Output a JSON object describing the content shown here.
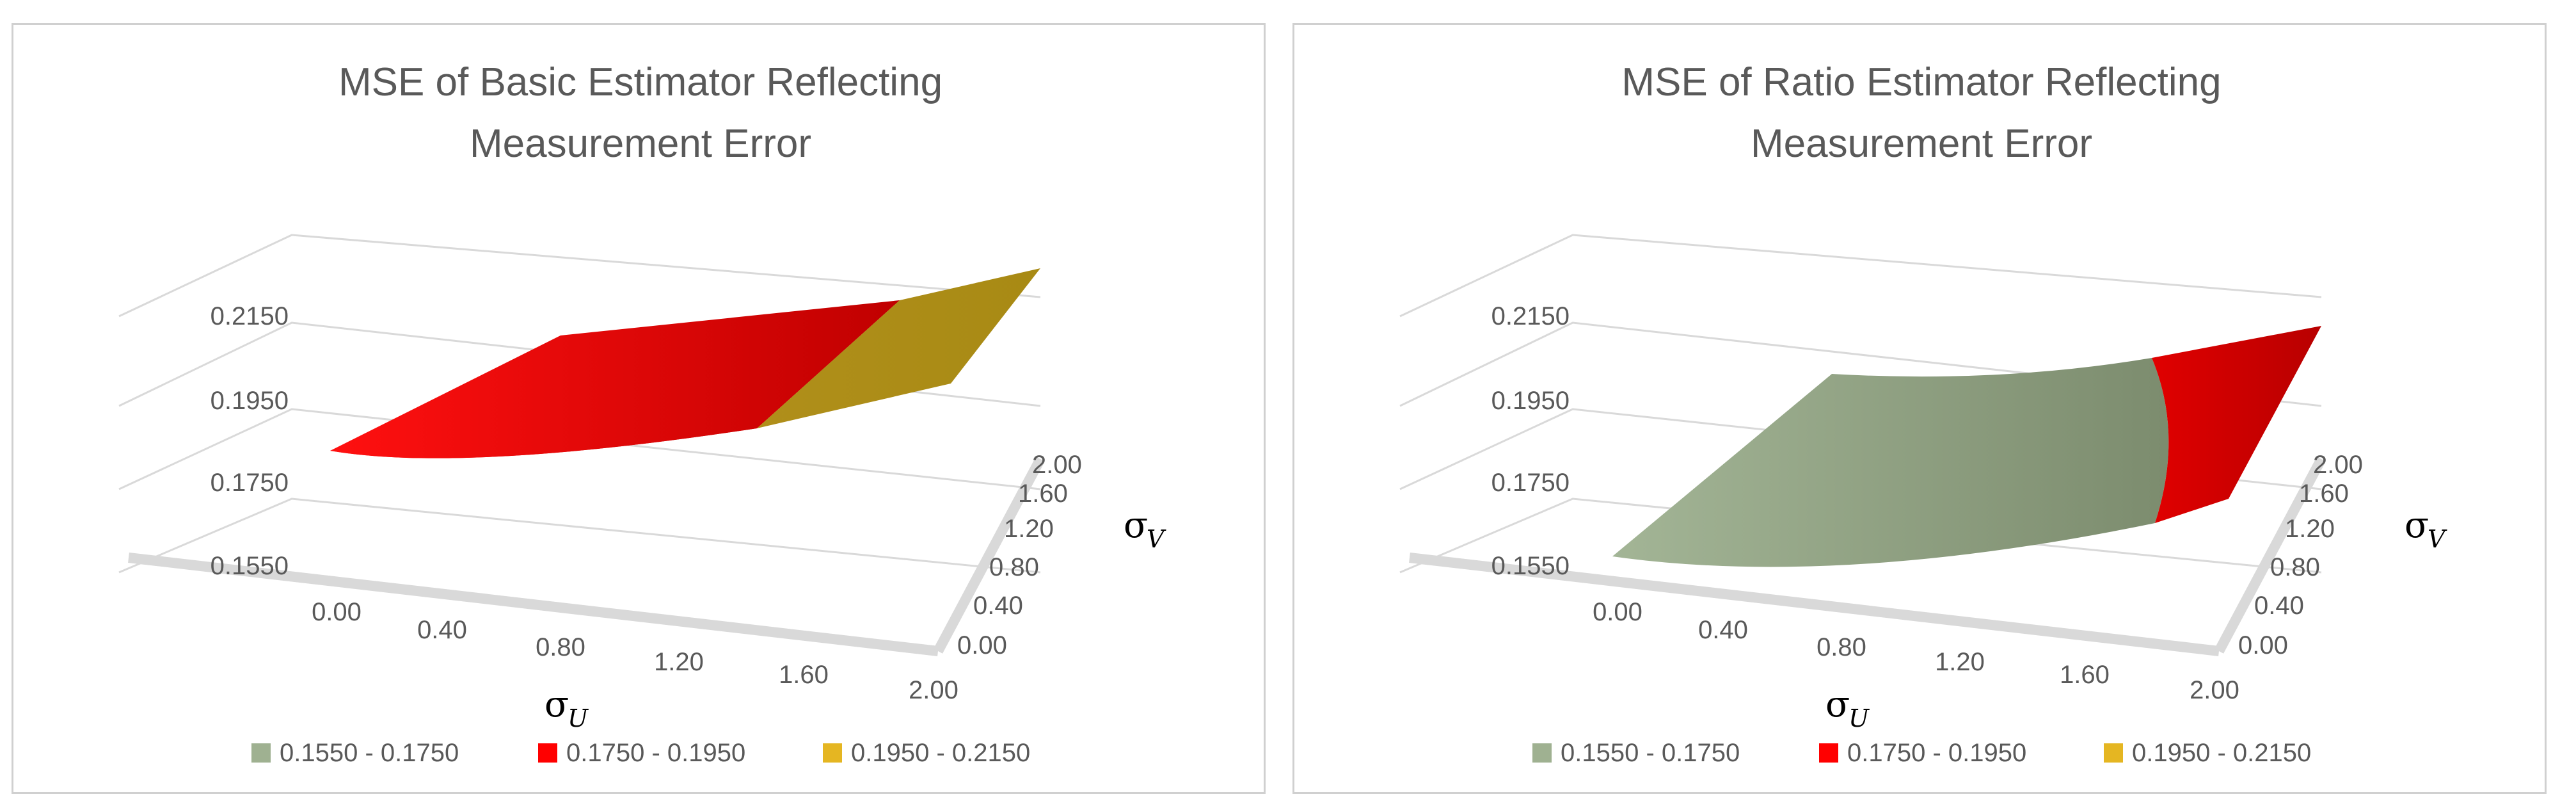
{
  "chart_data": [
    {
      "type": "surface",
      "title": [
        "MSE of Basic Estimator Reflecting",
        "Measurement Error"
      ],
      "xlabel": {
        "symbol": "σ",
        "subscript": "U"
      },
      "ylabel": {
        "symbol": "σ",
        "subscript": "V"
      },
      "x_ticks": [
        "0.00",
        "0.40",
        "0.80",
        "1.20",
        "1.60",
        "2.00"
      ],
      "y_ticks": [
        "0.00",
        "0.40",
        "0.80",
        "1.20",
        "1.60",
        "2.00"
      ],
      "z_ticks": [
        "0.1550",
        "0.1750",
        "0.1950",
        "0.2150"
      ],
      "zlim": [
        0.155,
        0.215
      ],
      "surface_corners": {
        "sigmaU_0_sigmaV_0": 0.185,
        "sigmaU_2_sigmaV_0": 0.197,
        "sigmaU_0_sigmaV_2": 0.186,
        "sigmaU_2_sigmaV_2": 0.206
      },
      "legend_position": "bottom",
      "legend": [
        {
          "label": "0.1550 - 0.1750",
          "color": "#9fb191"
        },
        {
          "label": "0.1750 - 0.1950",
          "color": "#ff0000"
        },
        {
          "label": "0.1950 - 0.2150",
          "color": "#e5b622"
        }
      ]
    },
    {
      "type": "surface",
      "title": [
        "MSE of Ratio Estimator Reflecting",
        "Measurement Error"
      ],
      "xlabel": {
        "symbol": "σ",
        "subscript": "U"
      },
      "ylabel": {
        "symbol": "σ",
        "subscript": "V"
      },
      "x_ticks": [
        "0.00",
        "0.40",
        "0.80",
        "1.20",
        "1.60",
        "2.00"
      ],
      "y_ticks": [
        "0.00",
        "0.40",
        "0.80",
        "1.20",
        "1.60",
        "2.00"
      ],
      "z_ticks": [
        "0.1550",
        "0.1750",
        "0.1950",
        "0.2150"
      ],
      "zlim": [
        0.155,
        0.215
      ],
      "surface_corners": {
        "sigmaU_0_sigmaV_0": 0.156,
        "sigmaU_2_sigmaV_0": 0.178,
        "sigmaU_0_sigmaV_2": 0.165,
        "sigmaU_2_sigmaV_2": 0.19
      },
      "legend_position": "bottom",
      "legend": [
        {
          "label": "0.1550 - 0.1750",
          "color": "#9fb191"
        },
        {
          "label": "0.1750 - 0.1950",
          "color": "#ff0000"
        },
        {
          "label": "0.1950 - 0.2150",
          "color": "#e5b622"
        }
      ]
    }
  ]
}
